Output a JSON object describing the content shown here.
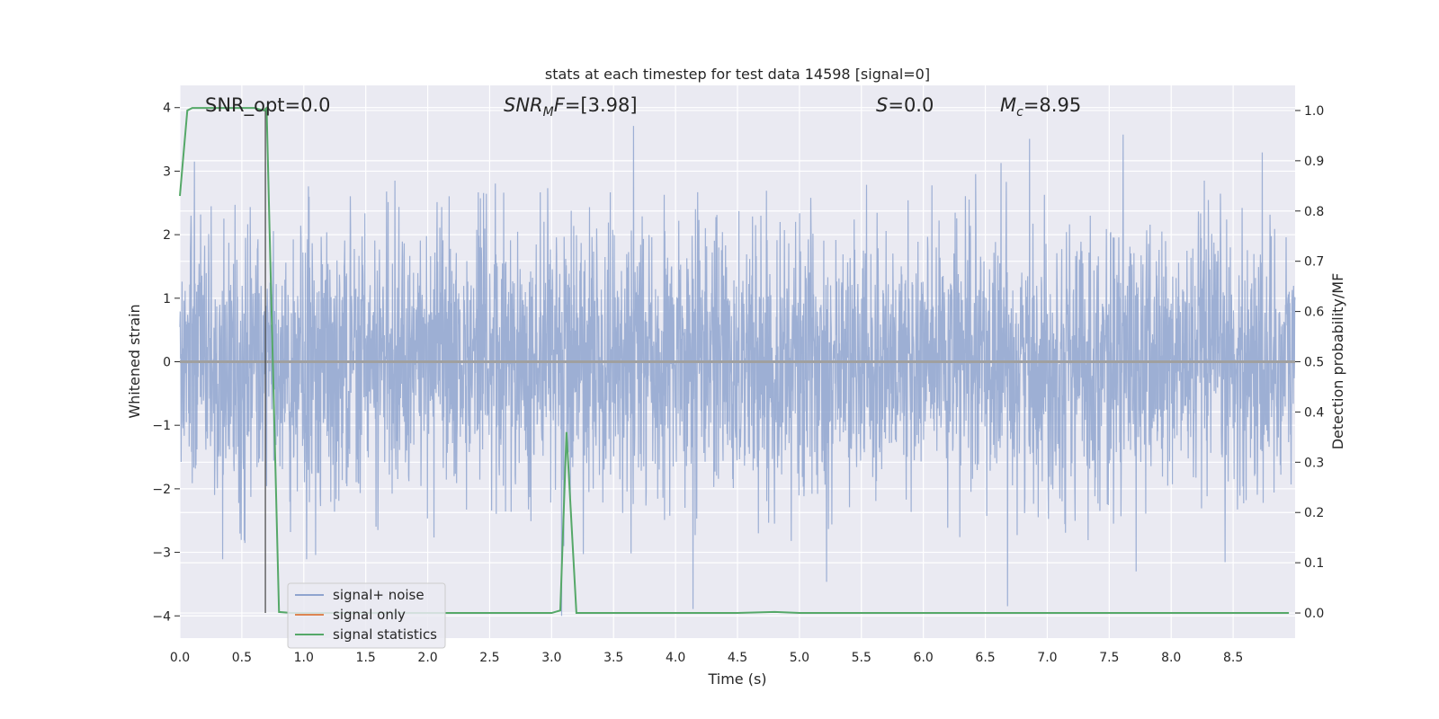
{
  "chart_data": {
    "type": "line",
    "title": "stats at each timestep for test data 14598 [signal=0]",
    "xlabel": "Time (s)",
    "ylabel": "Whitened strain",
    "y2label": "Detection probability/MF",
    "xlim": [
      0,
      9.0
    ],
    "ylim": [
      -4.35,
      4.35
    ],
    "y2lim": [
      -0.05,
      1.05
    ],
    "x_ticks": [
      "0.0",
      "0.5",
      "1.0",
      "1.5",
      "2.0",
      "2.5",
      "3.0",
      "3.5",
      "4.0",
      "4.5",
      "5.0",
      "5.5",
      "6.0",
      "6.5",
      "7.0",
      "7.5",
      "8.0",
      "8.5"
    ],
    "y_ticks": [
      "4",
      "3",
      "2",
      "1",
      "0",
      "−1",
      "−2",
      "−3",
      "−4"
    ],
    "y2_ticks": [
      "1.0",
      "0.9",
      "0.8",
      "0.7",
      "0.6",
      "0.5",
      "0.4",
      "0.3",
      "0.2",
      "0.1",
      "0.0"
    ],
    "grid": true,
    "legend_position": "lower-left",
    "annotations": {
      "snr_opt": "SNR_opt=0.0",
      "snr_mf_base": "SNR",
      "snr_mf_sub": "M",
      "snr_mf_rest": "F=[3.98]",
      "s_label": "S",
      "s_value": "=0.0",
      "mc_base": "M",
      "mc_sub": "c",
      "mc_value": "=8.95"
    },
    "series": [
      {
        "name": "signal+ noise",
        "color": "#8fa4cf",
        "description_range": [
          -4.0,
          4.0
        ],
        "noise_sigma": 1.0
      },
      {
        "name": "signal only",
        "color": "#dd8452",
        "x": [
          0,
          9.0
        ],
        "y": [
          0,
          0
        ]
      },
      {
        "name": "signal statistics",
        "color": "#55a868",
        "axis": "right",
        "x": [
          0.0,
          0.06,
          0.1,
          0.2,
          0.3,
          0.4,
          0.5,
          0.6,
          0.68,
          0.7,
          0.73,
          0.8,
          0.9,
          1.5,
          2.0,
          2.5,
          3.0,
          3.07,
          3.12,
          3.2,
          3.5,
          4.0,
          4.5,
          4.8,
          5.0,
          6.0,
          7.0,
          8.0,
          8.95
        ],
        "y": [
          0.83,
          1.0,
          1.005,
          1.005,
          1.005,
          1.005,
          1.005,
          1.005,
          1.0,
          1.005,
          0.7,
          0.002,
          0.0,
          0.0,
          0.0,
          0.0,
          0.0,
          0.005,
          0.36,
          0.0,
          0.0,
          0.0,
          0.0,
          0.002,
          0.0,
          0.0,
          0.0,
          0.0,
          0.0
        ]
      }
    ],
    "marker_line_x": 0.69
  }
}
